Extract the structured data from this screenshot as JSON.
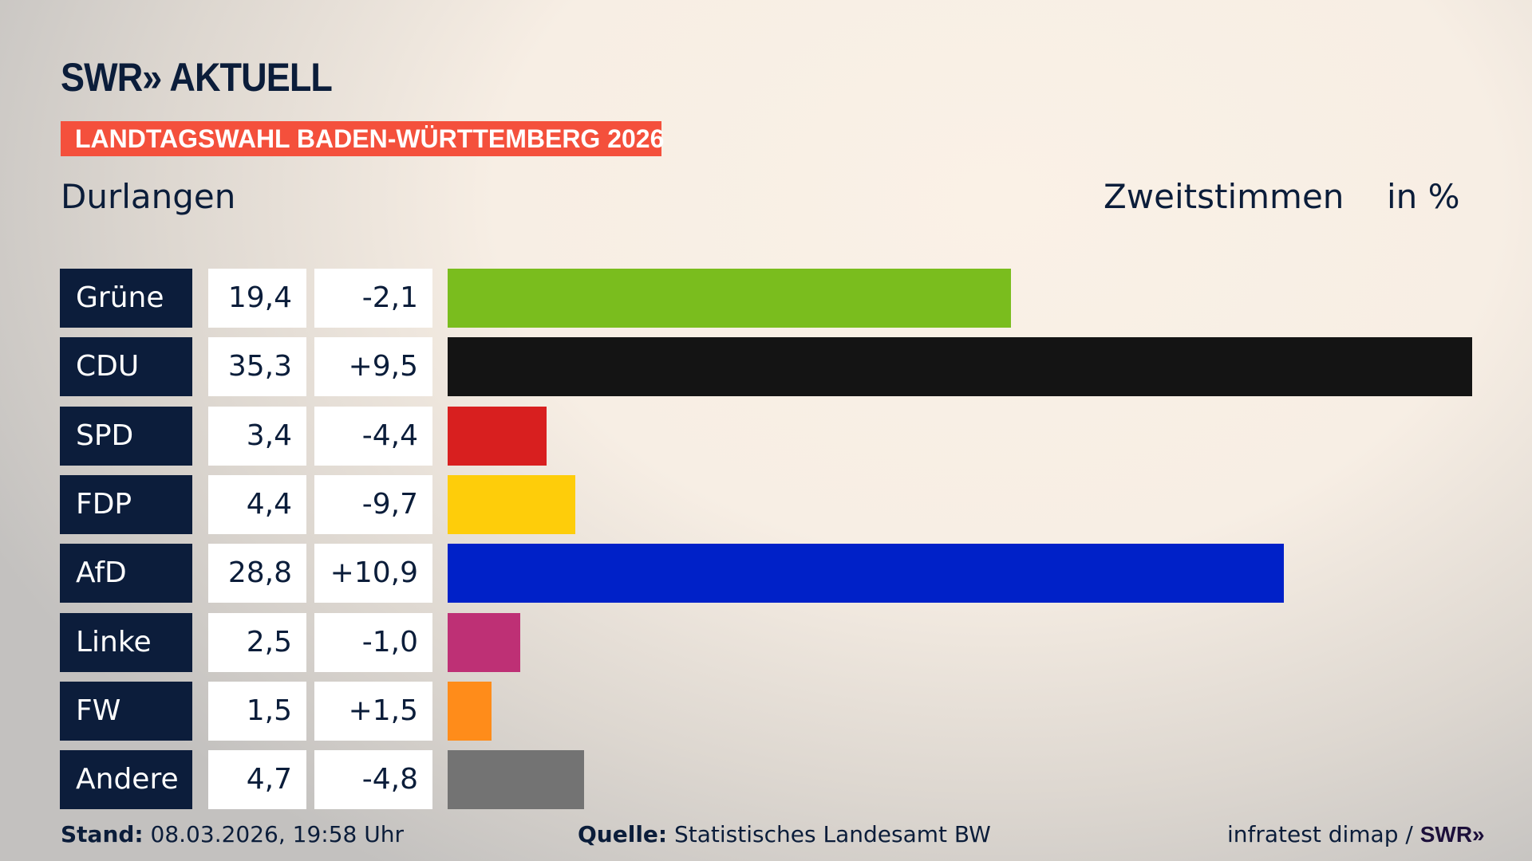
{
  "header": {
    "logo": "SWR» AKTUELL",
    "banner": "LANDTAGSWAHL BADEN-WÜRTTEMBERG 2026",
    "place": "Durlangen",
    "kind": "Zweitstimmen",
    "unit": "in %"
  },
  "chart_data": {
    "type": "bar",
    "orientation": "horizontal",
    "categories": [
      "Grüne",
      "CDU",
      "SPD",
      "FDP",
      "AfD",
      "Linke",
      "FW",
      "Andere"
    ],
    "values": [
      19.4,
      35.3,
      3.4,
      4.4,
      28.8,
      2.5,
      1.5,
      4.7
    ],
    "value_labels": [
      "19,4",
      "35,3",
      "3,4",
      "4,4",
      "28,8",
      "2,5",
      "1,5",
      "4,7"
    ],
    "diff_labels": [
      "-2,1",
      "+9,5",
      "-4,4",
      "-9,7",
      "+10,9",
      "-1,0",
      "+1,5",
      "-4,8"
    ],
    "colors": [
      "#7abd1e",
      "#141414",
      "#d81f1f",
      "#fecd0a",
      "#0021c8",
      "#be3075",
      "#ff8c1a",
      "#737373"
    ],
    "grid": false
  },
  "footer": {
    "stand_label": "Stand:",
    "stand_value": "08.03.2026, 19:58 Uhr",
    "source_label": "Quelle:",
    "source_value": "Statistisches Landesamt BW",
    "credit": "infratest dimap /",
    "credit_logo": "SWR»"
  }
}
